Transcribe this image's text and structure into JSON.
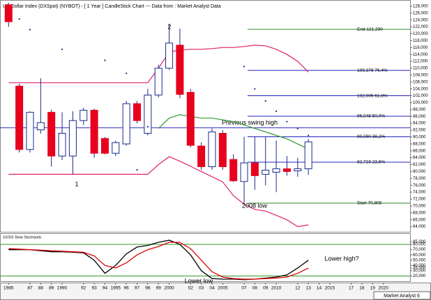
{
  "chart_data": [
    {
      "type": "candlestick",
      "title": "US Dollar Index (DXSpot) (NYBOT) - [ 1 Year ] CandleStick Chart --- Data from : Market Analyst Data",
      "x": [
        1985,
        1986,
        1987,
        1988,
        1989,
        1990,
        1991,
        1992,
        1993,
        1994,
        1995,
        1996,
        1997,
        1998,
        1999,
        2000,
        2001,
        2002,
        2003,
        2004,
        2005,
        2006,
        2007,
        2008,
        2009,
        2010,
        2011,
        2012,
        2013
      ],
      "open": [
        128.4,
        104.8,
        86.4,
        92.1,
        97.2,
        84.5,
        84.5,
        94.8,
        97.8,
        89.6,
        85.3,
        88.0,
        99.7,
        91.1,
        102.2,
        110.0,
        116.7,
        103.0,
        87.4,
        81.4,
        91.1,
        83.5,
        77.1,
        82.5,
        79.2,
        79.8,
        80.8,
        80.2,
        80.8
      ],
      "high": [
        129.0,
        105.5,
        97.5,
        107.1,
        98.0,
        97.2,
        97.5,
        98.5,
        98.3,
        90.0,
        89.0,
        100.5,
        100.5,
        104.0,
        111.0,
        122.9,
        121.5,
        104.0,
        88.5,
        92.5,
        92.0,
        85.0,
        90.1,
        90.1,
        90.0,
        89.0,
        84.5,
        84.0,
        89.5
      ],
      "low": [
        122.0,
        85.5,
        85.5,
        91.0,
        81.4,
        83.3,
        79.2,
        93.5,
        84.0,
        85.0,
        84.5,
        87.5,
        94.0,
        90.5,
        101.5,
        109.5,
        101.3,
        87.0,
        80.5,
        80.5,
        80.5,
        77.0,
        70.6,
        74.7,
        76.0,
        74.0,
        78.8,
        78.5,
        79.0
      ],
      "close": [
        123.5,
        86.4,
        97.2,
        94.2,
        84.5,
        91.1,
        94.8,
        97.8,
        85.3,
        85.3,
        88.4,
        99.7,
        94.8,
        102.2,
        110.0,
        117.3,
        102.4,
        87.6,
        81.4,
        91.5,
        81.4,
        77.3,
        82.5,
        78.8,
        80.4,
        80.8,
        80.0,
        80.8,
        88.6
      ],
      "up_color": "#ffffff",
      "down_color": "#e8001c",
      "outline_color": "#1a2a8a",
      "overlays": [
        {
          "color": "#e0206a",
          "values": [
            105.8,
            105.8,
            105.8,
            105.8,
            105.8,
            105.8,
            105.8,
            105.8,
            105.8,
            105.8,
            105.8,
            105.8,
            105.8,
            105.8,
            110.0,
            114.7,
            115.3,
            115.5,
            115.5,
            115.7,
            116.0,
            116.0,
            116.3,
            116.7,
            116.5,
            115.5,
            114.0,
            112.0,
            108.9
          ]
        },
        {
          "color": "#e0206a",
          "values": [
            79.2,
            79.2,
            79.2,
            79.2,
            79.2,
            79.2,
            79.2,
            79.2,
            79.2,
            79.2,
            79.2,
            79.2,
            79.2,
            79.2,
            82.0,
            84.3,
            83.0,
            81.5,
            80.0,
            78.5,
            77.0,
            73.0,
            70.5,
            69.0,
            68.5,
            67.3,
            66.0,
            64.0,
            64.5
          ]
        },
        {
          "color": "#2e9a2e",
          "values": [
            null,
            null,
            null,
            null,
            null,
            null,
            null,
            null,
            null,
            null,
            null,
            null,
            null,
            null,
            92.5,
            95.5,
            96.5,
            96.0,
            95.5,
            95.5,
            95.0,
            94.5,
            93.5,
            92.5,
            91.5,
            90.5,
            89.5,
            88.0,
            86.5
          ]
        }
      ],
      "dots": {
        "color": "#1a237e",
        "x": [
          1986,
          1987,
          1990,
          1994,
          1996,
          1997,
          1998,
          2007,
          2008,
          2009,
          2010,
          2011,
          2012,
          2013
        ],
        "values": [
          124.3,
          121.2,
          115.5,
          112.3,
          108.5,
          80.5,
          93.0,
          110.5,
          104.0,
          100.5,
          97.5,
          94.5,
          92.5,
          90.5
        ]
      },
      "hlines": [
        {
          "value": 92.7,
          "color": "#3030c0",
          "label": "Previous swing high"
        }
      ],
      "levels": [
        {
          "value": 121.29,
          "label": "End 121,290",
          "color": "#2e8b2e"
        },
        {
          "value": 109.376,
          "label": "109,376 76,4%",
          "color": "#2020c0"
        },
        {
          "value": 102.005,
          "label": "102,005 61,8%",
          "color": "#2020c0"
        },
        {
          "value": 96.048,
          "label": "96,048 50,0%",
          "color": "#2020c0"
        },
        {
          "value": 90.09,
          "label": "90,090 38,2%",
          "color": "#2020c0"
        },
        {
          "value": 82.719,
          "label": "82,719 23,6%",
          "color": "#2020c0"
        },
        {
          "value": 70.805,
          "label": "Start 70,805",
          "color": "#2e8b2e"
        }
      ],
      "annotations": [
        "1",
        "2",
        "2008 low"
      ],
      "xlim": [
        1984.2,
        2022.5
      ],
      "ylim": [
        62.5,
        129
      ],
      "yticks": [
        {
          "value": 64,
          "label": "64,000"
        },
        {
          "value": 66,
          "label": "66,000"
        },
        {
          "value": 68,
          "label": "68,000"
        },
        {
          "value": 70,
          "label": "70,000"
        },
        {
          "value": 72,
          "label": "72,000"
        },
        {
          "value": 74,
          "label": "74,000"
        },
        {
          "value": 76,
          "label": "76,000"
        },
        {
          "value": 78,
          "label": "78,000"
        },
        {
          "value": 80,
          "label": "80,000"
        },
        {
          "value": 82,
          "label": "82,000"
        },
        {
          "value": 84,
          "label": "84,000"
        },
        {
          "value": 86,
          "label": "86,000"
        },
        {
          "value": 88,
          "label": "88,000"
        },
        {
          "value": 90,
          "label": "90,000"
        },
        {
          "value": 92,
          "label": "92,000"
        },
        {
          "value": 94,
          "label": "94,000"
        },
        {
          "value": 96,
          "label": "96,000"
        },
        {
          "value": 98,
          "label": "98,000"
        },
        {
          "value": 100,
          "label": "100,000"
        },
        {
          "value": 102,
          "label": "102,000"
        },
        {
          "value": 104,
          "label": "104,000"
        },
        {
          "value": 106,
          "label": "106,000"
        },
        {
          "value": 108,
          "label": "108,000"
        },
        {
          "value": 110,
          "label": "110,000"
        },
        {
          "value": 112,
          "label": "112,000"
        },
        {
          "value": 114,
          "label": "114,000"
        },
        {
          "value": 116,
          "label": "116,000"
        },
        {
          "value": 118,
          "label": "118,000"
        },
        {
          "value": 120,
          "label": "120,000"
        },
        {
          "value": 122,
          "label": "122,000"
        },
        {
          "value": 124,
          "label": "124,000"
        },
        {
          "value": 126,
          "label": "126,000"
        },
        {
          "value": 128,
          "label": "128,000"
        }
      ]
    },
    {
      "type": "line",
      "title": "10/3/3 Slow Stochastic",
      "x": [
        1985,
        1986,
        1987,
        1988,
        1989,
        1990,
        1991,
        1992,
        1993,
        1994,
        1995,
        1996,
        1997,
        1998,
        1999,
        2000,
        2001,
        2002,
        2003,
        2004,
        2005,
        2006,
        2007,
        2008,
        2009,
        2010,
        2011,
        2012,
        2013
      ],
      "series": [
        {
          "color": "#000000",
          "values": [
            70,
            70,
            70,
            68,
            66,
            66,
            65,
            64,
            50,
            25,
            40,
            62,
            75,
            78,
            84,
            88,
            80,
            60,
            30,
            15,
            14,
            14,
            13,
            14,
            16,
            18,
            22,
            35,
            50
          ]
        },
        {
          "color": "#e00000",
          "values": [
            72,
            71,
            70,
            69,
            68,
            67,
            66,
            65,
            58,
            40,
            35,
            45,
            60,
            70,
            76,
            84,
            84,
            72,
            50,
            28,
            18,
            15,
            14,
            14,
            15,
            16,
            18,
            25,
            35
          ]
        }
      ],
      "levels": [
        {
          "value": 80,
          "color": "#2e9a2e"
        },
        {
          "value": 20,
          "color": "#2e9a2e"
        }
      ],
      "annotations": [
        "Lower low",
        "Lower high?"
      ],
      "xlim": [
        1984.2,
        2022.5
      ],
      "ylim": [
        10,
        100
      ],
      "yticks": [
        {
          "value": 85,
          "label": "85,000"
        },
        {
          "value": 80,
          "label": "80,000"
        },
        {
          "value": 70,
          "label": "70,000"
        },
        {
          "value": 60,
          "label": "60,000"
        },
        {
          "value": 50,
          "label": "50,000"
        },
        {
          "value": 40,
          "label": "40,000"
        },
        {
          "value": 35,
          "label": "35,000"
        },
        {
          "value": 30,
          "label": "30,000"
        },
        {
          "value": 20,
          "label": "20,000"
        }
      ],
      "xticks": [
        1985,
        {
          "value": 1987,
          "label": "87"
        },
        {
          "value": 1988,
          "label": "88"
        },
        {
          "value": 1989,
          "label": "89"
        },
        1990,
        {
          "value": 1992,
          "label": "92"
        },
        {
          "value": 1993,
          "label": "93"
        },
        {
          "value": 1994,
          "label": "94"
        },
        1995,
        {
          "value": 1996,
          "label": "96"
        },
        {
          "value": 1997,
          "label": "97"
        },
        {
          "value": 1998,
          "label": "98"
        },
        {
          "value": 1999,
          "label": "99"
        },
        2000,
        {
          "value": 2002,
          "label": "02"
        },
        {
          "value": 2003,
          "label": "03"
        },
        {
          "value": 2004,
          "label": "04"
        },
        2005,
        {
          "value": 2007,
          "label": "07"
        },
        {
          "value": 2008,
          "label": "08"
        },
        {
          "value": 2009,
          "label": "09"
        },
        2010,
        {
          "value": 2012,
          "label": "12"
        },
        {
          "value": 2013,
          "label": "13"
        },
        {
          "value": 2014,
          "label": "14"
        },
        2015,
        {
          "value": 2017,
          "label": "17"
        },
        {
          "value": 2018,
          "label": "18"
        },
        {
          "value": 2019,
          "label": "19"
        },
        2020
      ]
    }
  ],
  "footer": "Market Analyst 6"
}
